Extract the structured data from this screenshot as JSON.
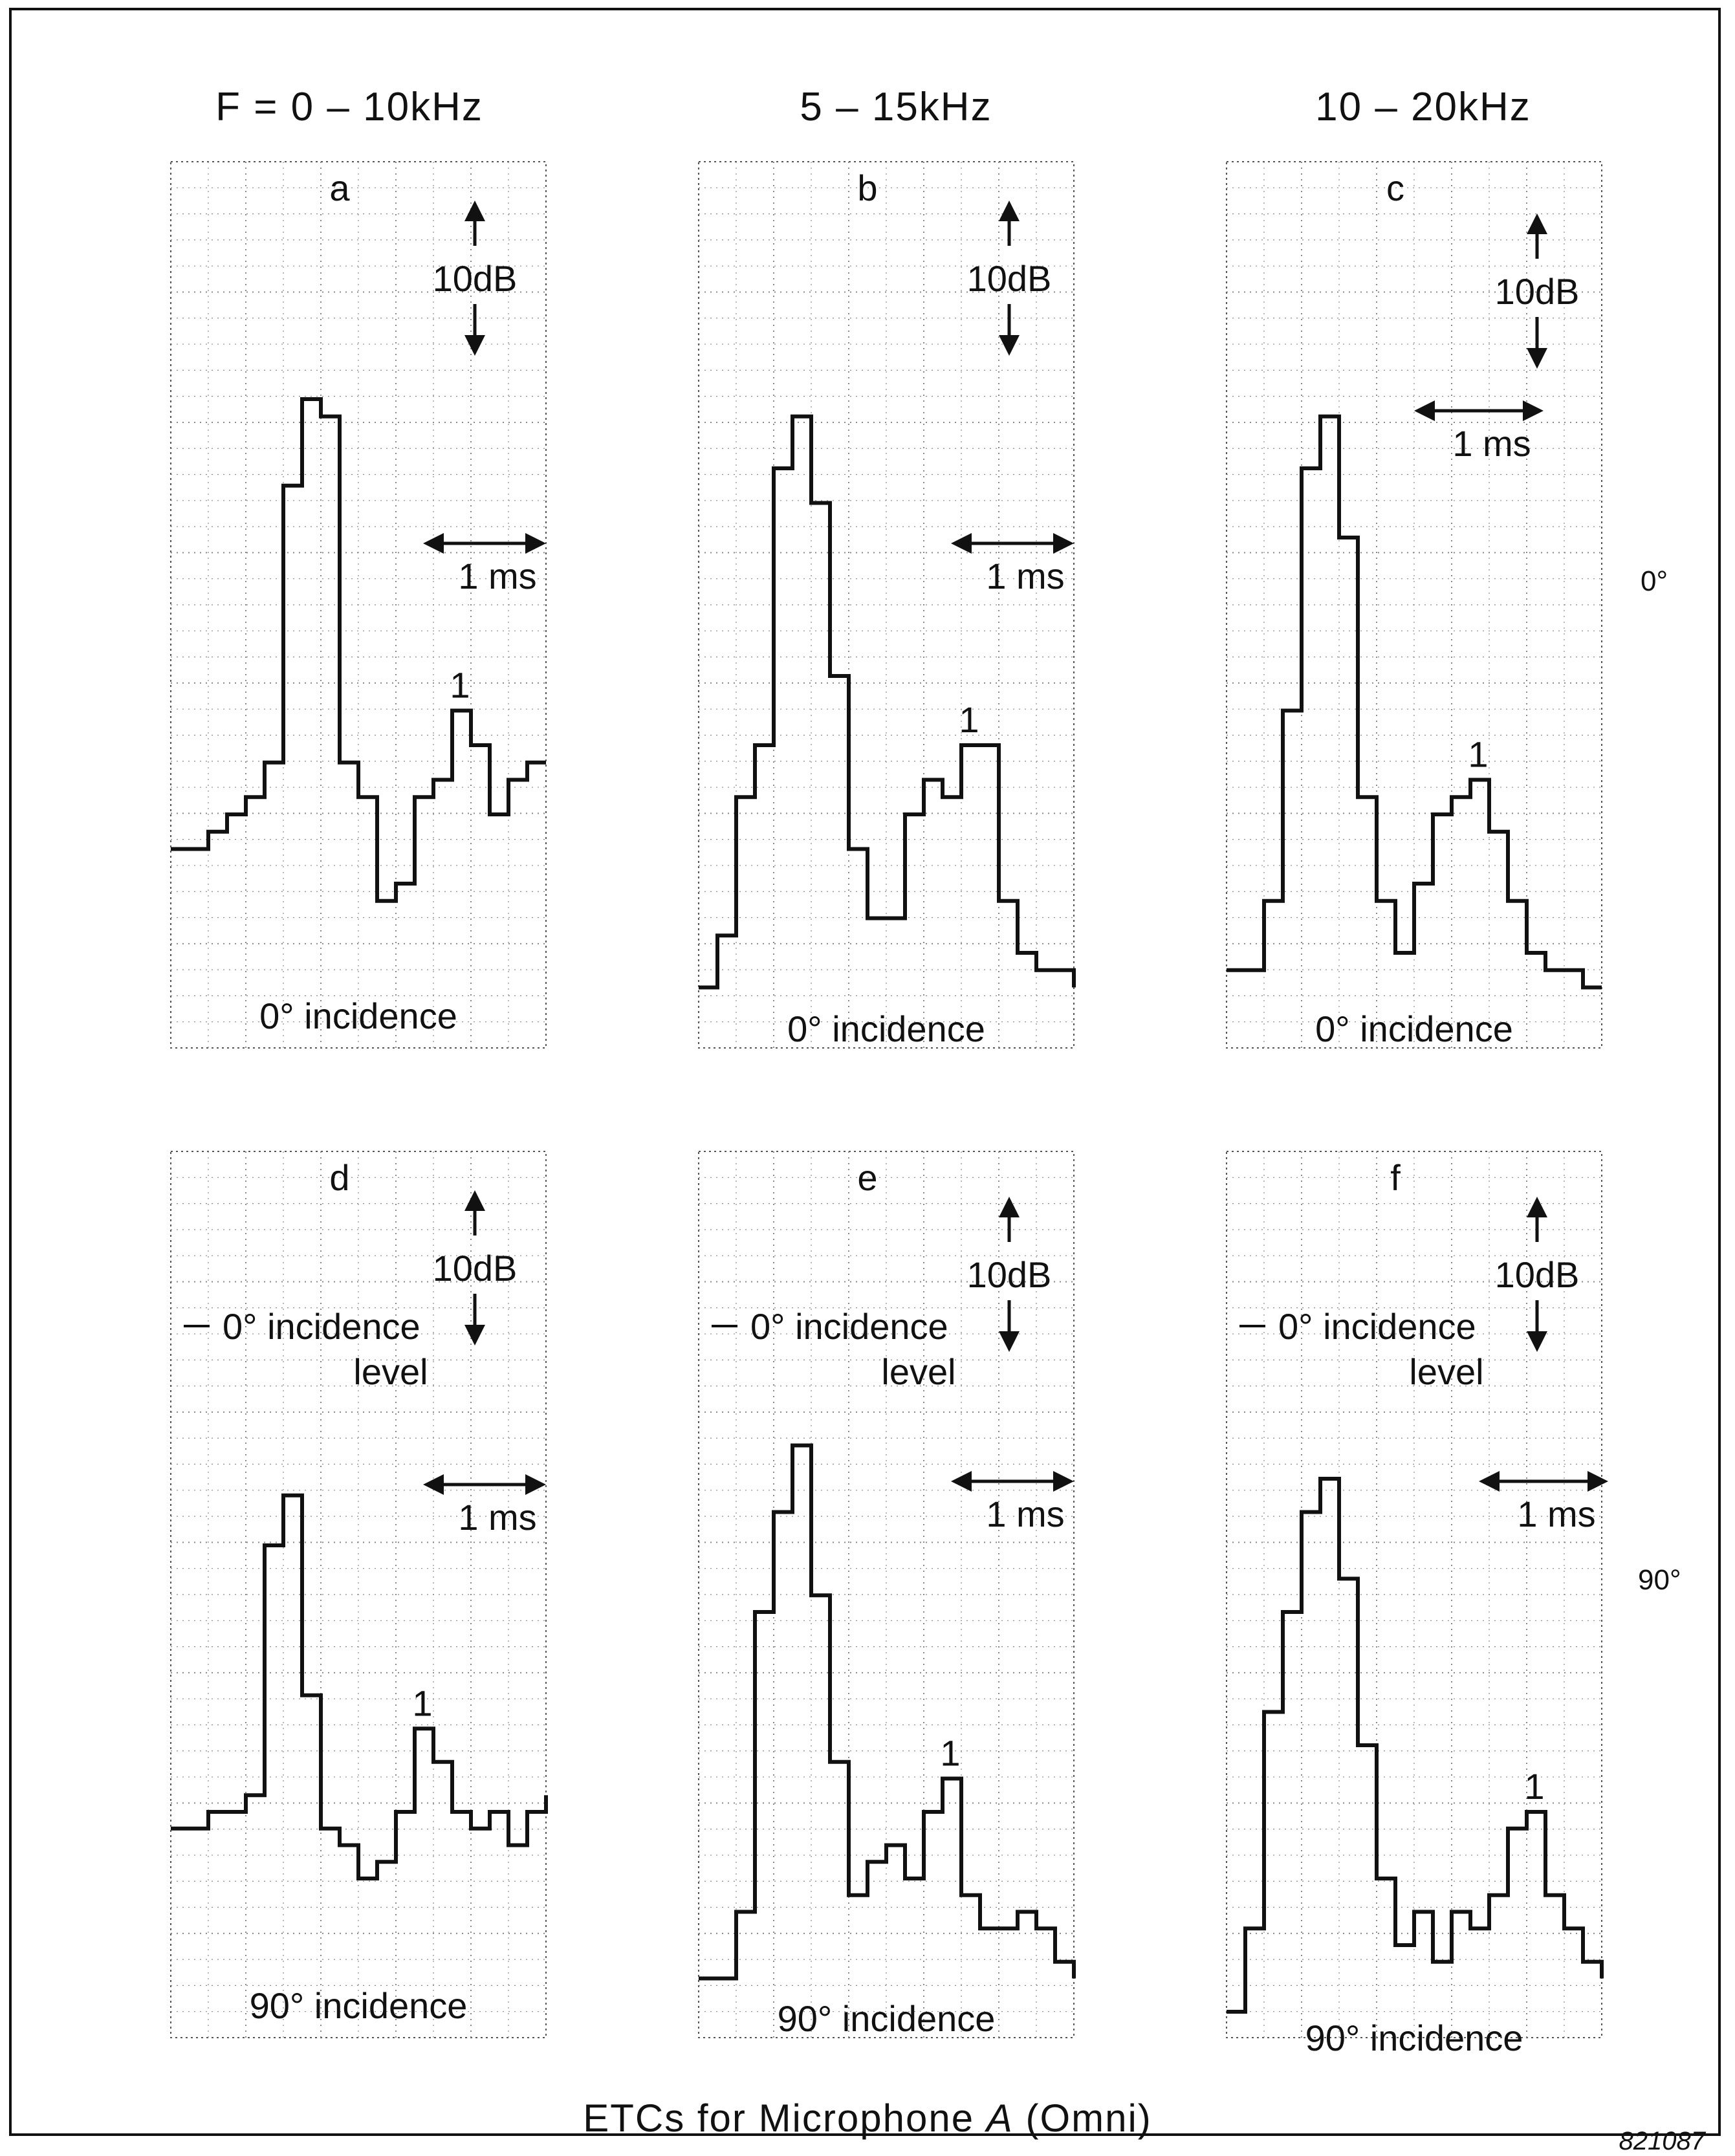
{
  "column_headers": [
    "F = 0 – 10kHz",
    "5 – 15kHz",
    "10 – 20kHz"
  ],
  "row_labels": [
    "0°",
    "90°"
  ],
  "caption_main": "ETCs for Microphone ",
  "caption_italic": "A",
  "caption_tail": " (Omni)",
  "figure_number": "821087",
  "level_scale_label": "10 dB",
  "time_scale_label": "1 ms",
  "reflection_label": "1",
  "reference_label": "0° incidence",
  "reference_label_cont": "level",
  "chart_data": [
    {
      "type": "line",
      "panel": "a",
      "incidence": "0° incidence",
      "ylim": [
        -40,
        0
      ],
      "x": [
        0,
        0.5,
        1.0,
        1.5,
        2.0,
        2.5,
        3.0,
        3.5,
        4.0,
        4.5,
        5.0,
        5.5,
        6.0,
        6.5,
        7.0,
        7.5,
        8.0,
        8.5,
        9.0,
        9.5,
        10.0
      ],
      "y": [
        -30,
        -30,
        -29,
        -28,
        -27,
        -25,
        -9,
        -4,
        -5,
        -25,
        -27,
        -33,
        -32,
        -27,
        -26,
        -22,
        -24,
        -28,
        -26,
        -25,
        -25
      ]
    },
    {
      "type": "line",
      "panel": "b",
      "incidence": "0° incidence",
      "ylim": [
        -40,
        0
      ],
      "x": [
        0,
        0.5,
        1.0,
        1.5,
        2.0,
        2.5,
        3.0,
        3.5,
        4.0,
        4.5,
        5.0,
        5.5,
        6.0,
        6.5,
        7.0,
        7.5,
        8.0,
        8.5,
        9.0,
        9.5,
        10.0
      ],
      "y": [
        -38,
        -35,
        -27,
        -24,
        -8,
        -5,
        -10,
        -20,
        -30,
        -34,
        -34,
        -28,
        -26,
        -27,
        -24,
        -24,
        -33,
        -36,
        -37,
        -37,
        -38
      ]
    },
    {
      "type": "line",
      "panel": "c",
      "incidence": "0° incidence",
      "ylim": [
        -40,
        0
      ],
      "x": [
        0,
        0.5,
        1.0,
        1.5,
        2.0,
        2.5,
        3.0,
        3.5,
        4.0,
        4.5,
        5.0,
        5.5,
        6.0,
        6.5,
        7.0,
        7.5,
        8.0,
        8.5,
        9.0,
        9.5,
        10.0
      ],
      "y": [
        -37,
        -37,
        -33,
        -22,
        -8,
        -5,
        -12,
        -27,
        -33,
        -36,
        -32,
        -28,
        -27,
        -26,
        -29,
        -33,
        -36,
        -37,
        -37,
        -38,
        -38
      ]
    },
    {
      "type": "line",
      "panel": "d",
      "incidence": "90° incidence",
      "ylim": [
        -40,
        0
      ],
      "x": [
        0,
        0.5,
        1.0,
        1.5,
        2.0,
        2.5,
        3.0,
        3.5,
        4.0,
        4.5,
        5.0,
        5.5,
        6.0,
        6.5,
        7.0,
        7.5,
        8.0,
        8.5,
        9.0,
        9.5,
        10.0
      ],
      "y": [
        -29,
        -29,
        -28,
        -28,
        -27,
        -12,
        -9,
        -21,
        -29,
        -30,
        -32,
        -31,
        -28,
        -23,
        -25,
        -28,
        -29,
        -28,
        -30,
        -28,
        -27
      ]
    },
    {
      "type": "line",
      "panel": "e",
      "incidence": "90° incidence",
      "ylim": [
        -40,
        0
      ],
      "x": [
        0,
        0.5,
        1.0,
        1.5,
        2.0,
        2.5,
        3.0,
        3.5,
        4.0,
        4.5,
        5.0,
        5.5,
        6.0,
        6.5,
        7.0,
        7.5,
        8.0,
        8.5,
        9.0,
        9.5,
        10.0
      ],
      "y": [
        -38,
        -38,
        -34,
        -16,
        -10,
        -6,
        -15,
        -25,
        -33,
        -31,
        -30,
        -32,
        -28,
        -26,
        -33,
        -35,
        -35,
        -34,
        -35,
        -37,
        -38
      ]
    },
    {
      "type": "line",
      "panel": "f",
      "incidence": "90° incidence",
      "ylim": [
        -40,
        0
      ],
      "x": [
        0,
        0.5,
        1.0,
        1.5,
        2.0,
        2.5,
        3.0,
        3.5,
        4.0,
        4.5,
        5.0,
        5.5,
        6.0,
        6.5,
        7.0,
        7.5,
        8.0,
        8.5,
        9.0,
        9.5,
        10.0
      ],
      "y": [
        -40,
        -35,
        -22,
        -16,
        -10,
        -8,
        -14,
        -24,
        -32,
        -36,
        -34,
        -37,
        -34,
        -35,
        -33,
        -29,
        -28,
        -33,
        -35,
        -37,
        -38
      ]
    }
  ]
}
